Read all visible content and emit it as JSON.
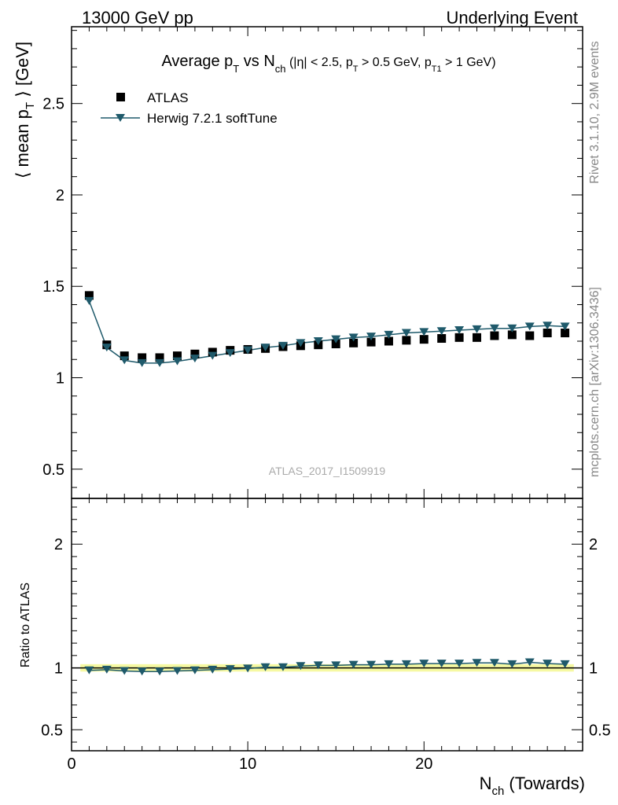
{
  "header": {
    "left": "13000 GeV pp",
    "right": "Underlying Event"
  },
  "side_labels": {
    "rivet": "Rivet 3.1.10,  2.9M events",
    "mcplots": "mcplots.cern.ch [arXiv:1306.3436]"
  },
  "watermark": "ATLAS_2017_I1509919",
  "chart_data": {
    "type": "scatter",
    "title": {
      "pre": "Average p",
      "sub1": "T",
      "mid": " vs N",
      "sub2": "ch",
      "cuts_pre": " (|η| < 2.5, p",
      "cuts_sub1": "T",
      "cuts_mid": " > 0.5 GeV, p",
      "cuts_sub2": "T1",
      "cuts_post": " > 1 GeV)"
    },
    "ylabel": {
      "pre": "⟨ mean p",
      "sub": "T",
      "post": " ⟩ [GeV]"
    },
    "ratio_ylabel": "Ratio to ATLAS",
    "xlabel": {
      "pre": "N",
      "sub": "ch",
      "post": " (Towards)"
    },
    "xlim": [
      0,
      29
    ],
    "ylim": [
      0.34,
      2.92
    ],
    "ratio_ylim": [
      0.33,
      2.37
    ],
    "x_ticks": [
      "0",
      "10",
      "20"
    ],
    "x_tick_values": [
      0,
      10,
      20
    ],
    "y_ticks": [
      "0.5",
      "1",
      "1.5",
      "2",
      "2.5"
    ],
    "y_tick_values": [
      0.5,
      1.0,
      1.5,
      2.0,
      2.5
    ],
    "ratio_ticks": [
      "0.5",
      "1",
      "2"
    ],
    "ratio_tick_values": [
      0.5,
      1.0,
      2.0
    ],
    "legend_placement": "top-left",
    "series": [
      {
        "name": "ATLAS",
        "marker": "square",
        "color": "#000000",
        "x": [
          1,
          2,
          3,
          4,
          5,
          6,
          7,
          8,
          9,
          10,
          11,
          12,
          13,
          14,
          15,
          16,
          17,
          18,
          19,
          20,
          21,
          22,
          23,
          24,
          25,
          26,
          27,
          28
        ],
        "y": [
          1.45,
          1.18,
          1.12,
          1.11,
          1.11,
          1.12,
          1.13,
          1.14,
          1.15,
          1.155,
          1.16,
          1.17,
          1.175,
          1.18,
          1.185,
          1.19,
          1.195,
          1.2,
          1.205,
          1.21,
          1.215,
          1.22,
          1.22,
          1.23,
          1.235,
          1.23,
          1.245,
          1.245
        ]
      },
      {
        "name": "Herwig 7.2.1 softTune",
        "marker": "triangle-down",
        "color": "#1f5a6b",
        "x": [
          1,
          2,
          3,
          4,
          5,
          6,
          7,
          8,
          9,
          10,
          11,
          12,
          13,
          14,
          15,
          16,
          17,
          18,
          19,
          20,
          21,
          22,
          23,
          24,
          25,
          26,
          27,
          28
        ],
        "y": [
          1.42,
          1.165,
          1.095,
          1.08,
          1.08,
          1.09,
          1.105,
          1.12,
          1.135,
          1.15,
          1.165,
          1.175,
          1.19,
          1.2,
          1.21,
          1.22,
          1.225,
          1.235,
          1.245,
          1.25,
          1.255,
          1.26,
          1.265,
          1.27,
          1.27,
          1.28,
          1.285,
          1.28
        ]
      }
    ],
    "ratio": {
      "x": [
        1,
        2,
        3,
        4,
        5,
        6,
        7,
        8,
        9,
        10,
        11,
        12,
        13,
        14,
        15,
        16,
        17,
        18,
        19,
        20,
        21,
        22,
        23,
        24,
        25,
        26,
        27,
        28
      ],
      "y": [
        0.98,
        0.985,
        0.975,
        0.97,
        0.97,
        0.975,
        0.98,
        0.985,
        0.99,
        0.995,
        1.005,
        1.005,
        1.015,
        1.02,
        1.02,
        1.025,
        1.025,
        1.03,
        1.03,
        1.035,
        1.035,
        1.035,
        1.04,
        1.04,
        1.03,
        1.045,
        1.035,
        1.03
      ]
    }
  }
}
